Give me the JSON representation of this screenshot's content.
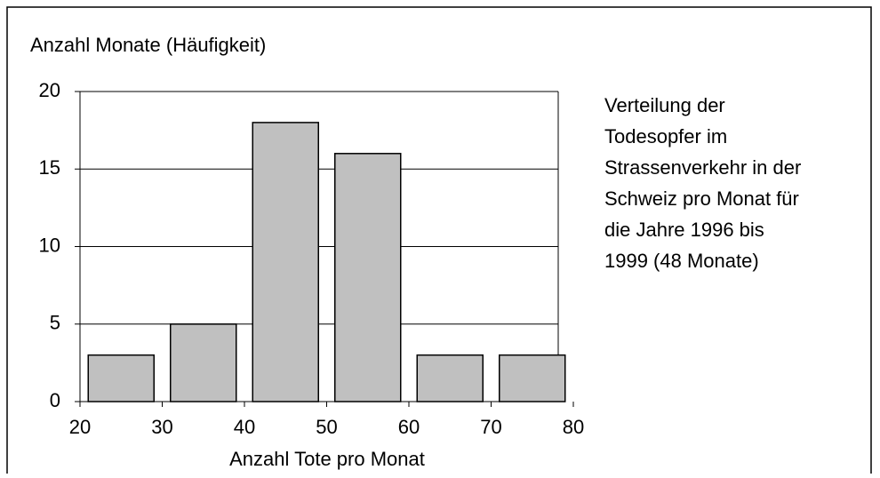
{
  "chart_data": {
    "type": "histogram",
    "y_label": "Anzahl Monate (Häufigkeit)",
    "x_label": "Anzahl Tote pro Monat",
    "annotation": [
      "Verteilung der",
      "Todesopfer im",
      "Strassenverkehr in der",
      "Schweiz pro Monat für",
      "die Jahre 1996 bis",
      "1999 (48 Monate)"
    ],
    "bins": [
      20,
      30,
      40,
      50,
      60,
      70,
      80
    ],
    "values": [
      3,
      5,
      18,
      16,
      3,
      3
    ],
    "color": "#c0c0c0",
    "xlim": [
      20,
      80
    ],
    "xticks": [
      20,
      30,
      40,
      50,
      60,
      70,
      80
    ],
    "ylim": [
      0,
      20
    ],
    "yticks": [
      0,
      5,
      10,
      15,
      20
    ],
    "grid": true
  }
}
